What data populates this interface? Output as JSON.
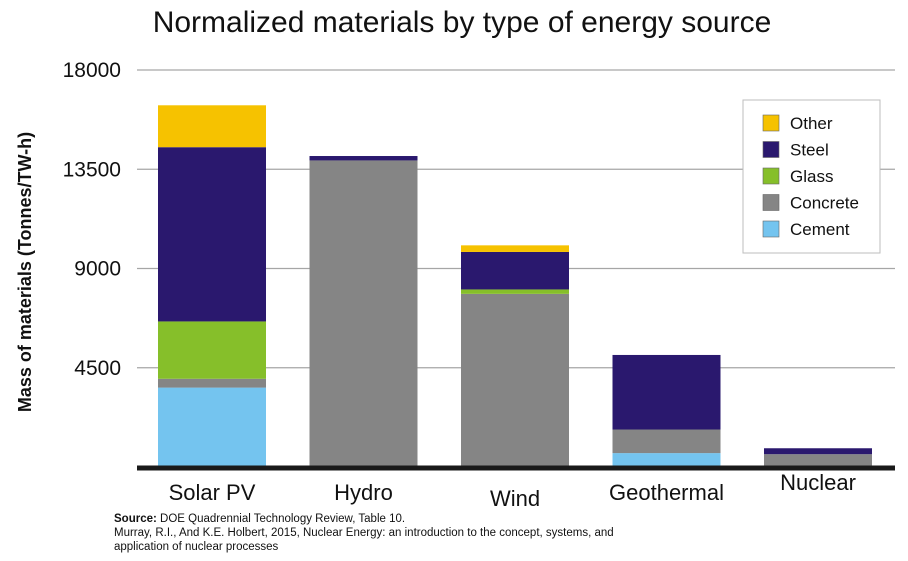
{
  "chart_data": {
    "type": "bar",
    "stacked": true,
    "title": "Normalized materials by type of energy source",
    "xlabel": "",
    "ylabel": "Mass of materials (Tonnes/TW-h)",
    "ylim": [
      0,
      18000
    ],
    "yticks": [
      4500,
      9000,
      13500,
      18000
    ],
    "ytick_labels": [
      "4500",
      "9000",
      "13500",
      "18000"
    ],
    "grid": true,
    "legend_position": "top-right",
    "categories": [
      "Solar PV",
      "Hydro",
      "Wind",
      "Geothermal",
      "Nuclear"
    ],
    "series": [
      {
        "name": "Cement",
        "color": "#74c4ef",
        "values": [
          3600,
          0,
          0,
          630,
          0
        ]
      },
      {
        "name": "Concrete",
        "color": "#858585",
        "values": [
          400,
          13900,
          7850,
          1070,
          580
        ]
      },
      {
        "name": "Glass",
        "color": "#86bf2a",
        "values": [
          2600,
          0,
          200,
          0,
          0
        ]
      },
      {
        "name": "Steel",
        "color": "#2a186e",
        "values": [
          7900,
          200,
          1700,
          3380,
          270
        ]
      },
      {
        "name": "Other",
        "color": "#f6c200",
        "values": [
          1900,
          0,
          300,
          0,
          0
        ]
      }
    ],
    "legend_order": [
      "Other",
      "Steel",
      "Glass",
      "Concrete",
      "Cement"
    ]
  },
  "source": {
    "label": "Source:",
    "line1": " DOE Quadrennial Technology Review, Table 10.",
    "line2": "Murray, R.I., And K.E. Holbert, 2015, Nuclear Energy: an introduction to the concept, systems, and",
    "line3": "application of  nuclear processes"
  }
}
